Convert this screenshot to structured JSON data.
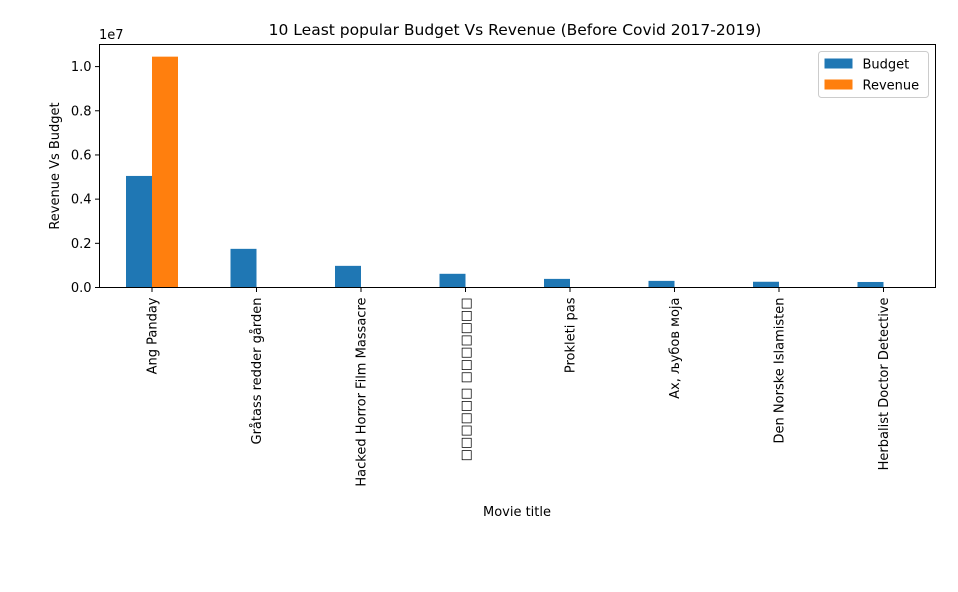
{
  "chart_data": {
    "type": "bar",
    "title": "10 Least popular Budget Vs Revenue (Before Covid 2017-2019)",
    "xlabel": "Movie title",
    "ylabel": "Revenue Vs Budget",
    "y_scale_label": "1e7",
    "ylim": [
      0,
      11000000
    ],
    "yticks": [
      0,
      2000000,
      4000000,
      6000000,
      8000000,
      10000000
    ],
    "ytick_labels": [
      "0.0",
      "0.2",
      "0.4",
      "0.6",
      "0.8",
      "1.0"
    ],
    "categories": [
      "Ang Panday",
      "Gråtass redder gården",
      "Hacked Horror Film Massacre",
      "□□□□□□ □□□□□□□",
      "Prokleti pas",
      "Ах, љубов моја",
      "Den Norske Islamisten",
      "Herbalist Doctor Detective"
    ],
    "series": [
      {
        "name": "Budget",
        "color": "#1f77b4",
        "values": [
          5050000,
          1750000,
          980000,
          620000,
          390000,
          300000,
          260000,
          250000
        ]
      },
      {
        "name": "Revenue",
        "color": "#ff7f0e",
        "values": [
          10450000,
          0,
          0,
          0,
          0,
          0,
          0,
          0
        ]
      }
    ],
    "legend_position": "top-right",
    "grid": false
  }
}
